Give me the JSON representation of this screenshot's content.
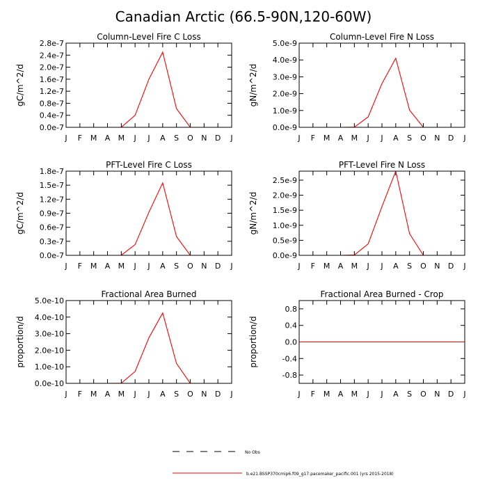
{
  "title": "Canadian Arctic (66.5-90N,120-60W)",
  "months": [
    "J",
    "F",
    "M",
    "A",
    "M",
    "J",
    "J",
    "A",
    "S",
    "O",
    "N",
    "D",
    "J"
  ],
  "chart_data": [
    {
      "type": "line",
      "title": "Column-Level Fire C Loss",
      "ylabel": "gC/m^2/d",
      "ylim": [
        0,
        2.8e-07
      ],
      "yticks": [
        "0.0e-7",
        "0.4e-7",
        "0.8e-7",
        "1.2e-7",
        "1.6e-7",
        "2.0e-7",
        "2.4e-7",
        "2.8e-7"
      ],
      "series": [
        {
          "values": [
            0,
            0,
            0,
            0,
            2e-10,
            4e-08,
            1.6e-07,
            2.5e-07,
            6.2e-08,
            0,
            0,
            0,
            0
          ]
        }
      ]
    },
    {
      "type": "line",
      "title": "Column-Level Fire N Loss",
      "ylabel": "gN/m^2/d",
      "ylim": [
        0,
        5e-09
      ],
      "yticks": [
        "0.0e-9",
        "1.0e-9",
        "2.0e-9",
        "3.0e-9",
        "4.0e-9",
        "5.0e-9"
      ],
      "series": [
        {
          "values": [
            0,
            0,
            0,
            0,
            1e-11,
            6.2e-10,
            2.6e-09,
            4.1e-09,
            1.02e-09,
            0,
            0,
            0,
            0
          ]
        }
      ]
    },
    {
      "type": "line",
      "title": "PFT-Level Fire C Loss",
      "ylabel": "gC/m^2/d",
      "ylim": [
        0,
        1.8e-07
      ],
      "yticks": [
        "0.0e-7",
        "0.3e-7",
        "0.6e-7",
        "0.9e-7",
        "1.2e-7",
        "1.5e-7",
        "1.8e-7"
      ],
      "series": [
        {
          "values": [
            0,
            0,
            0,
            0,
            2e-10,
            2.3e-08,
            9.2e-08,
            1.55e-07,
            4e-08,
            0,
            0,
            0,
            0
          ]
        }
      ]
    },
    {
      "type": "line",
      "title": "PFT-Level Fire N Loss",
      "ylabel": "gN/m^2/d",
      "ylim": [
        0,
        2.8e-09
      ],
      "yticks": [
        "0.0e-9",
        "0.5e-9",
        "1.0e-9",
        "1.5e-9",
        "2.0e-9",
        "2.5e-9"
      ],
      "series": [
        {
          "values": [
            0,
            0,
            0,
            0,
            1e-11,
            3.8e-10,
            1.62e-09,
            2.8e-09,
            7.2e-10,
            0,
            0,
            0,
            0
          ]
        }
      ]
    },
    {
      "type": "line",
      "title": "Fractional Area Burned",
      "ylabel": "proportion/d",
      "ylim": [
        0,
        5e-10
      ],
      "yticks": [
        "0.0e-10",
        "1.0e-10",
        "2.0e-10",
        "3.0e-10",
        "4.0e-10",
        "5.0e-10"
      ],
      "series": [
        {
          "values": [
            0,
            0,
            0,
            0,
            1e-12,
            7.2e-11,
            2.75e-10,
            4.25e-10,
            1.2e-10,
            0,
            0,
            0,
            0
          ]
        }
      ]
    },
    {
      "type": "line",
      "title": "Fractional Area Burned - Crop",
      "ylabel": "proportion/d",
      "ylim": [
        -1,
        1
      ],
      "ytickvals": [
        -0.8,
        -0.4,
        0,
        0.4,
        0.8
      ],
      "yticks": [
        "-0.8",
        "-0.4",
        "0.0",
        "0.4",
        "0.8"
      ],
      "series": [
        {
          "values": [
            0,
            0,
            0,
            0,
            0,
            0,
            0,
            0,
            0,
            0,
            0,
            0,
            0
          ]
        }
      ]
    }
  ],
  "legend": {
    "obs_label": "No Obs",
    "model_label": "b.e21.BSSP370cmip6.f09_g17.pacemaker_pacific.001 (yrs 2015-2018)",
    "model_color": "#ff0000"
  }
}
